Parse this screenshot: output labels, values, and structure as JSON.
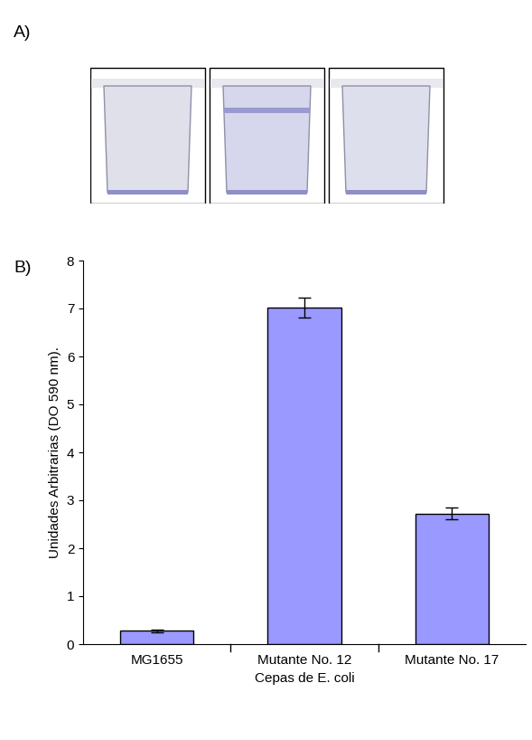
{
  "panel_labels": [
    "A)",
    "B)"
  ],
  "chart_data": {
    "type": "bar",
    "categories": [
      "MG1655",
      "Mutante No. 12",
      "Mutante No. 17"
    ],
    "values": [
      0.28,
      7.02,
      2.72
    ],
    "errors": [
      0.03,
      0.2,
      0.12
    ],
    "color": "#9999ff",
    "x_label": "Cepas de E. coli",
    "y_label": "Unidades Arbitrarias (DO 590 nm).",
    "ylim": [
      0,
      8
    ],
    "yticks": [
      0,
      1,
      2,
      3,
      4,
      5,
      6,
      7,
      8
    ],
    "grid": false
  }
}
